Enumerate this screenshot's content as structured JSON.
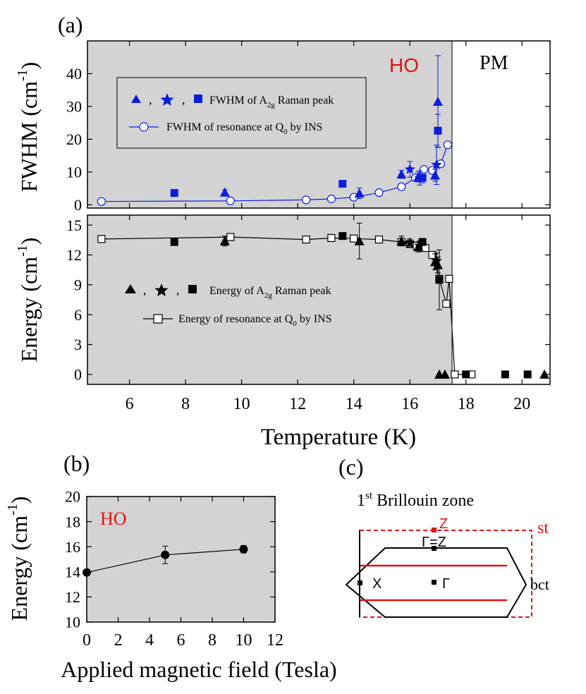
{
  "panel_labels": {
    "a": "(a)",
    "b": "(b)",
    "c": "(c)"
  },
  "colors": {
    "ho_shade": "#d3d3d3",
    "blue": "#0a1edc",
    "red": "#e01414",
    "black": "#000000"
  },
  "chart_data": [
    {
      "id": "a-top",
      "type": "scatter",
      "title": "",
      "xlabel": "Temperature (K)",
      "ylabel": "FWHM (cm⁻¹)",
      "ylabel_main": "FWHM (cm",
      "ylabel_sup": "-1",
      "ylabel_close": ")",
      "xlim": [
        4.5,
        21.0
      ],
      "ylim": [
        -1,
        50
      ],
      "yticks": [
        0,
        10,
        20,
        30,
        40
      ],
      "ho_boundary_x": 17.5,
      "region_labels": {
        "ho": "HO",
        "pm": "PM"
      },
      "legend": [
        {
          "marker": "symbols-blue",
          "sep": ",",
          "text_main": "FWHM of A",
          "text_sub": "2g",
          "text_end": " Raman peak"
        },
        {
          "marker": "line-open-circle",
          "text_main": "FWHM of resonance at Q",
          "text_sub": "0",
          "text_end": " by INS"
        }
      ],
      "series": [
        {
          "name": "FWHM of resonance at Q0 by INS",
          "marker": "open-circle",
          "line": true,
          "x": [
            5.0,
            9.6,
            12.3,
            13.2,
            14.0,
            14.9,
            15.7,
            16.2,
            16.5,
            16.8,
            17.1,
            17.35
          ],
          "y": [
            1.0,
            1.2,
            1.5,
            1.8,
            2.3,
            3.7,
            5.5,
            8.2,
            10.8,
            10.5,
            12.5,
            18.3
          ]
        },
        {
          "name": "A2g triangle",
          "marker": "triangle",
          "x": [
            9.4,
            14.2,
            15.7,
            16.3,
            16.9,
            17.0
          ],
          "y": [
            3.8,
            3.5,
            9.3,
            8.5,
            9.0,
            31.5
          ],
          "yerr": [
            0.8,
            1.6,
            1.2,
            1.5,
            1.8,
            14.0
          ]
        },
        {
          "name": "A2g star",
          "marker": "star",
          "x": [
            16.0,
            16.35,
            16.95
          ],
          "y": [
            10.8,
            8.2,
            12.2
          ],
          "yerr": [
            2.4,
            2.2,
            6.0
          ]
        },
        {
          "name": "A2g square",
          "marker": "square",
          "x": [
            7.6,
            13.6,
            16.45,
            17.0
          ],
          "y": [
            3.6,
            6.4,
            8.2,
            22.6
          ],
          "yerr": [
            0,
            1.0,
            1.5,
            5.0
          ]
        }
      ]
    },
    {
      "id": "a-bottom",
      "type": "scatter",
      "title": "",
      "xlabel": "Temperature (K)",
      "ylabel": "Energy (cm⁻¹)",
      "ylabel_main": "Energy (cm",
      "ylabel_sup": "-1",
      "ylabel_close": ")",
      "xlim": [
        4.5,
        21.0
      ],
      "ylim": [
        -1,
        16
      ],
      "xticks": [
        6,
        8,
        10,
        12,
        14,
        16,
        18,
        20
      ],
      "yticks": [
        0,
        3,
        6,
        9,
        12,
        15
      ],
      "ho_boundary_x": 17.5,
      "legend": [
        {
          "marker": "symbols-black",
          "sep": ",",
          "text_main": "Energy of A",
          "text_sub": "2g",
          "text_end": " Raman peak"
        },
        {
          "marker": "line-open-square",
          "text_main": "Energy of resonance at Q",
          "text_sub": "0",
          "text_end": " by INS"
        }
      ],
      "series": [
        {
          "name": "Energy of resonance at Q0 by INS",
          "marker": "open-square",
          "line": true,
          "x": [
            5.0,
            9.6,
            12.3,
            13.2,
            14.0,
            14.9,
            15.7,
            16.0,
            16.25,
            16.55,
            16.8,
            17.05,
            17.3,
            17.4,
            17.6,
            18.2
          ],
          "y": [
            13.6,
            13.8,
            13.55,
            13.7,
            13.65,
            13.55,
            13.3,
            13.1,
            12.9,
            12.7,
            12.0,
            9.6,
            7.1,
            9.6,
            0.0,
            0.0
          ]
        },
        {
          "name": "A2g triangle",
          "marker": "triangle",
          "x": [
            9.4,
            14.2,
            15.7,
            16.3,
            16.9,
            17.0,
            17.05,
            17.25,
            20.8
          ],
          "y": [
            13.4,
            13.4,
            13.4,
            12.8,
            11.3,
            11.0,
            0.0,
            0.0,
            0.0
          ],
          "yerr": [
            0.5,
            1.8,
            0.5,
            0.5,
            0.8,
            0.8,
            0,
            0,
            0
          ]
        },
        {
          "name": "A2g star",
          "marker": "star",
          "x": [
            16.0,
            16.35,
            16.95
          ],
          "y": [
            13.2,
            12.9,
            11.4
          ],
          "yerr": [
            0.4,
            0.5,
            0.8
          ]
        },
        {
          "name": "A2g square",
          "marker": "square",
          "x": [
            7.6,
            13.6,
            16.45,
            17.05,
            18.0,
            19.4,
            20.2
          ],
          "y": [
            13.3,
            13.9,
            13.3,
            9.5,
            0.0,
            0.0,
            0.0
          ],
          "yerr": [
            0,
            0,
            0.3,
            3.0,
            0,
            0,
            0
          ]
        }
      ]
    },
    {
      "id": "b",
      "type": "line",
      "title": "",
      "xlabel": "Applied magnetic field (Tesla)",
      "ylabel": "Energy (cm⁻¹)",
      "ylabel_main": "Energy (cm",
      "ylabel_sup": "-1",
      "ylabel_close": ")",
      "xlim": [
        0,
        12
      ],
      "ylim": [
        10,
        20
      ],
      "xticks": [
        0,
        2,
        4,
        6,
        8,
        10,
        12
      ],
      "yticks": [
        10,
        12,
        14,
        16,
        18,
        20
      ],
      "region_label": "HO",
      "series": [
        {
          "name": "Energy vs field",
          "marker": "filled-circle",
          "x": [
            0,
            5,
            10
          ],
          "y": [
            13.95,
            15.35,
            15.8
          ],
          "yerr": [
            0.25,
            0.7,
            0.3
          ]
        }
      ]
    }
  ],
  "brillouin": {
    "title_prefix": "1",
    "title_sup": "st",
    "title_rest": " Brillouin zone",
    "label_z_red": "Z",
    "label_gamma_z": "Γ=Z",
    "label_x": "X",
    "label_gamma": "Γ",
    "label_st": "st",
    "label_bct": "bct"
  }
}
